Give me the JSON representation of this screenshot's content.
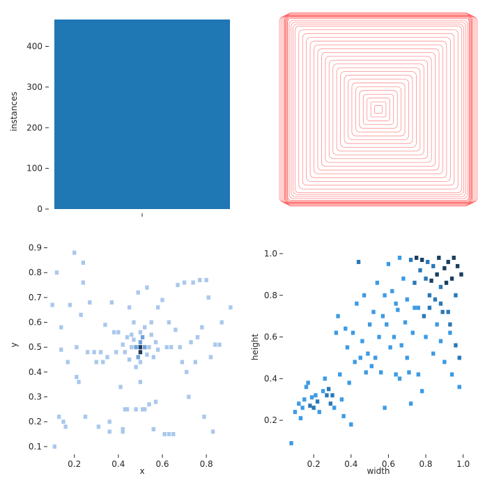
{
  "chart_data": [
    {
      "type": "bar",
      "categories": [
        ""
      ],
      "values": [
        466
      ],
      "title": "",
      "xlabel": "",
      "ylabel": "instances",
      "ylim": [
        0,
        466
      ],
      "yticks": [
        0,
        100,
        200,
        300,
        400
      ],
      "grid": false,
      "colors": {
        "bar": "#1f77b4"
      }
    },
    {
      "type": "other",
      "description_free": true,
      "title": "",
      "xlabel": "",
      "ylabel": "",
      "colors": {
        "stroke": "#ff0000"
      },
      "box_half_sizes": [
        0.02,
        0.04,
        0.06,
        0.08,
        0.1,
        0.12,
        0.14,
        0.16,
        0.18,
        0.2,
        0.22,
        0.24,
        0.26,
        0.28,
        0.3,
        0.32,
        0.34,
        0.36,
        0.38,
        0.4,
        0.42,
        0.44,
        0.45,
        0.46,
        0.47,
        0.48,
        0.485,
        0.49,
        0.495,
        0.5
      ]
    },
    {
      "type": "heatmap",
      "title": "",
      "xlabel": "x",
      "ylabel": "y",
      "xlim": [
        0.09,
        0.92
      ],
      "ylim": [
        0.08,
        0.91
      ],
      "xticks": [
        "0.2",
        "0.4",
        "0.6",
        "0.8"
      ],
      "xtick_values": [
        0.2,
        0.4,
        0.6,
        0.8
      ],
      "yticks": [
        "0.1",
        "0.2",
        "0.3",
        "0.4",
        "0.5",
        "0.6",
        "0.7",
        "0.8",
        "0.9"
      ],
      "ytick_values": [
        0.1,
        0.2,
        0.3,
        0.4,
        0.5,
        0.6,
        0.7,
        0.8,
        0.9
      ],
      "bin_width": 0.017,
      "colors": {
        "low": "#aac8ec",
        "mid": "#6fa3da",
        "high": "#203a5a"
      },
      "cells": [
        [
          0.5,
          0.5,
          3
        ],
        [
          0.5,
          0.48,
          3
        ],
        [
          0.5,
          0.52,
          2
        ],
        [
          0.48,
          0.5,
          2
        ],
        [
          0.52,
          0.5,
          2
        ],
        [
          0.49,
          0.46,
          2
        ],
        [
          0.51,
          0.54,
          2
        ],
        [
          0.46,
          0.5,
          1
        ],
        [
          0.54,
          0.5,
          1
        ],
        [
          0.5,
          0.44,
          1
        ],
        [
          0.5,
          0.56,
          1
        ],
        [
          0.47,
          0.53,
          1
        ],
        [
          0.53,
          0.47,
          1
        ],
        [
          0.55,
          0.55,
          1
        ],
        [
          0.45,
          0.45,
          1
        ],
        [
          0.52,
          0.58,
          1
        ],
        [
          0.48,
          0.42,
          1
        ],
        [
          0.57,
          0.52,
          1
        ],
        [
          0.43,
          0.48,
          1
        ],
        [
          0.56,
          0.46,
          1
        ],
        [
          0.44,
          0.54,
          1
        ],
        [
          0.58,
          0.49,
          1
        ],
        [
          0.42,
          0.51,
          1
        ],
        [
          0.1,
          0.67,
          1
        ],
        [
          0.11,
          0.1,
          1
        ],
        [
          0.12,
          0.8,
          1
        ],
        [
          0.13,
          0.22,
          1
        ],
        [
          0.14,
          0.58,
          1
        ],
        [
          0.15,
          0.2,
          1
        ],
        [
          0.14,
          0.49,
          1
        ],
        [
          0.16,
          0.18,
          1
        ],
        [
          0.17,
          0.44,
          1
        ],
        [
          0.18,
          0.67,
          1
        ],
        [
          0.2,
          0.88,
          1
        ],
        [
          0.21,
          0.38,
          1
        ],
        [
          0.21,
          0.5,
          1
        ],
        [
          0.22,
          0.36,
          1
        ],
        [
          0.23,
          0.63,
          1
        ],
        [
          0.24,
          0.84,
          1
        ],
        [
          0.24,
          0.76,
          1
        ],
        [
          0.25,
          0.22,
          1
        ],
        [
          0.26,
          0.48,
          1
        ],
        [
          0.27,
          0.68,
          1
        ],
        [
          0.29,
          0.48,
          1
        ],
        [
          0.3,
          0.44,
          1
        ],
        [
          0.31,
          0.18,
          1
        ],
        [
          0.32,
          0.48,
          1
        ],
        [
          0.33,
          0.44,
          1
        ],
        [
          0.34,
          0.59,
          1
        ],
        [
          0.35,
          0.46,
          1
        ],
        [
          0.36,
          0.2,
          1
        ],
        [
          0.37,
          0.68,
          1
        ],
        [
          0.38,
          0.56,
          1
        ],
        [
          0.39,
          0.48,
          1
        ],
        [
          0.4,
          0.56,
          1
        ],
        [
          0.41,
          0.34,
          1
        ],
        [
          0.42,
          0.16,
          1
        ],
        [
          0.43,
          0.25,
          1
        ],
        [
          0.44,
          0.25,
          1
        ],
        [
          0.45,
          0.66,
          1
        ],
        [
          0.46,
          0.55,
          1
        ],
        [
          0.47,
          0.6,
          1
        ],
        [
          0.48,
          0.25,
          1
        ],
        [
          0.49,
          0.72,
          1
        ],
        [
          0.5,
          0.36,
          1
        ],
        [
          0.51,
          0.25,
          1
        ],
        [
          0.52,
          0.25,
          1
        ],
        [
          0.53,
          0.74,
          1
        ],
        [
          0.54,
          0.27,
          1
        ],
        [
          0.55,
          0.6,
          1
        ],
        [
          0.56,
          0.17,
          1
        ],
        [
          0.57,
          0.28,
          1
        ],
        [
          0.58,
          0.66,
          1
        ],
        [
          0.6,
          0.69,
          1
        ],
        [
          0.61,
          0.15,
          1
        ],
        [
          0.62,
          0.5,
          1
        ],
        [
          0.63,
          0.6,
          1
        ],
        [
          0.64,
          0.5,
          1
        ],
        [
          0.65,
          0.15,
          1
        ],
        [
          0.66,
          0.57,
          1
        ],
        [
          0.67,
          0.75,
          1
        ],
        [
          0.68,
          0.5,
          1
        ],
        [
          0.69,
          0.44,
          1
        ],
        [
          0.7,
          0.76,
          1
        ],
        [
          0.71,
          0.4,
          1
        ],
        [
          0.72,
          0.3,
          1
        ],
        [
          0.73,
          0.52,
          1
        ],
        [
          0.74,
          0.76,
          1
        ],
        [
          0.75,
          0.44,
          1
        ],
        [
          0.76,
          0.54,
          1
        ],
        [
          0.77,
          0.77,
          1
        ],
        [
          0.78,
          0.58,
          1
        ],
        [
          0.79,
          0.22,
          1
        ],
        [
          0.8,
          0.77,
          1
        ],
        [
          0.81,
          0.7,
          1
        ],
        [
          0.82,
          0.46,
          1
        ],
        [
          0.83,
          0.16,
          1
        ],
        [
          0.84,
          0.51,
          1
        ],
        [
          0.86,
          0.51,
          1
        ],
        [
          0.87,
          0.6,
          1
        ],
        [
          0.91,
          0.66,
          1
        ],
        [
          0.63,
          0.15,
          1
        ],
        [
          0.56,
          0.17,
          1
        ],
        [
          0.42,
          0.17,
          1
        ],
        [
          0.36,
          0.16,
          1
        ]
      ]
    },
    {
      "type": "heatmap",
      "title": "",
      "xlabel": "width",
      "ylabel": "height",
      "xlim": [
        0.05,
        1.02
      ],
      "ylim": [
        0.05,
        1.04
      ],
      "xticks": [
        "0.2",
        "0.4",
        "0.6",
        "0.8",
        "1.0"
      ],
      "xtick_values": [
        0.2,
        0.4,
        0.6,
        0.8,
        1.0
      ],
      "yticks": [
        "0.2",
        "0.4",
        "0.6",
        "0.8",
        "1.0"
      ],
      "ytick_values": [
        0.2,
        0.4,
        0.6,
        0.8,
        1.0
      ],
      "bin_width": 0.02,
      "colors": {
        "low": "#3c9be5",
        "mid": "#2b78b6",
        "high": "#1b3f5e"
      },
      "cells": [
        [
          0.08,
          0.09,
          1
        ],
        [
          0.1,
          0.24,
          1
        ],
        [
          0.12,
          0.28,
          1
        ],
        [
          0.13,
          0.21,
          1
        ],
        [
          0.14,
          0.26,
          1
        ],
        [
          0.15,
          0.3,
          1
        ],
        [
          0.16,
          0.36,
          1
        ],
        [
          0.17,
          0.38,
          1
        ],
        [
          0.18,
          0.27,
          2
        ],
        [
          0.19,
          0.31,
          1
        ],
        [
          0.2,
          0.26,
          2
        ],
        [
          0.21,
          0.32,
          1
        ],
        [
          0.22,
          0.29,
          2
        ],
        [
          0.23,
          0.24,
          1
        ],
        [
          0.25,
          0.34,
          1
        ],
        [
          0.26,
          0.4,
          1
        ],
        [
          0.27,
          0.32,
          2
        ],
        [
          0.28,
          0.35,
          2
        ],
        [
          0.29,
          0.28,
          2
        ],
        [
          0.3,
          0.32,
          2
        ],
        [
          0.31,
          0.26,
          1
        ],
        [
          0.32,
          0.62,
          1
        ],
        [
          0.33,
          0.7,
          1
        ],
        [
          0.34,
          0.42,
          1
        ],
        [
          0.35,
          0.3,
          1
        ],
        [
          0.36,
          0.22,
          1
        ],
        [
          0.37,
          0.64,
          1
        ],
        [
          0.38,
          0.55,
          1
        ],
        [
          0.39,
          0.38,
          1
        ],
        [
          0.4,
          0.18,
          1
        ],
        [
          0.41,
          0.62,
          1
        ],
        [
          0.42,
          0.48,
          1
        ],
        [
          0.43,
          0.76,
          1
        ],
        [
          0.44,
          0.96,
          2
        ],
        [
          0.45,
          0.5,
          1
        ],
        [
          0.46,
          0.58,
          1
        ],
        [
          0.47,
          0.8,
          1
        ],
        [
          0.48,
          0.43,
          1
        ],
        [
          0.49,
          0.52,
          1
        ],
        [
          0.5,
          0.66,
          1
        ],
        [
          0.51,
          0.46,
          1
        ],
        [
          0.52,
          0.72,
          1
        ],
        [
          0.53,
          0.5,
          1
        ],
        [
          0.54,
          0.86,
          1
        ],
        [
          0.55,
          0.6,
          1
        ],
        [
          0.56,
          0.43,
          1
        ],
        [
          0.57,
          0.7,
          1
        ],
        [
          0.58,
          0.26,
          1
        ],
        [
          0.59,
          0.66,
          1
        ],
        [
          0.6,
          0.95,
          1
        ],
        [
          0.61,
          0.55,
          1
        ],
        [
          0.62,
          0.82,
          1
        ],
        [
          0.63,
          0.6,
          1
        ],
        [
          0.64,
          0.42,
          1
        ],
        [
          0.65,
          0.73,
          1
        ],
        [
          0.66,
          0.98,
          1
        ],
        [
          0.67,
          0.56,
          1
        ],
        [
          0.68,
          0.88,
          1
        ],
        [
          0.69,
          0.67,
          1
        ],
        [
          0.7,
          0.78,
          1
        ],
        [
          0.71,
          0.43,
          1
        ],
        [
          0.72,
          0.97,
          2
        ],
        [
          0.73,
          0.62,
          1
        ],
        [
          0.74,
          0.86,
          2
        ],
        [
          0.75,
          0.98,
          3
        ],
        [
          0.76,
          0.74,
          1
        ],
        [
          0.77,
          0.92,
          2
        ],
        [
          0.78,
          0.97,
          3
        ],
        [
          0.79,
          0.7,
          2
        ],
        [
          0.8,
          0.88,
          2
        ],
        [
          0.81,
          0.96,
          2
        ],
        [
          0.82,
          0.8,
          2
        ],
        [
          0.83,
          0.87,
          3
        ],
        [
          0.84,
          0.94,
          2
        ],
        [
          0.85,
          0.78,
          2
        ],
        [
          0.86,
          0.9,
          3
        ],
        [
          0.87,
          0.98,
          3
        ],
        [
          0.88,
          0.84,
          2
        ],
        [
          0.89,
          0.72,
          2
        ],
        [
          0.9,
          0.93,
          3
        ],
        [
          0.91,
          0.86,
          3
        ],
        [
          0.92,
          0.96,
          3
        ],
        [
          0.93,
          0.66,
          2
        ],
        [
          0.94,
          0.88,
          3
        ],
        [
          0.95,
          0.98,
          3
        ],
        [
          0.96,
          0.8,
          2
        ],
        [
          0.97,
          0.94,
          3
        ],
        [
          0.98,
          0.5,
          2
        ],
        [
          0.99,
          0.9,
          3
        ],
        [
          0.84,
          0.52,
          1
        ],
        [
          0.9,
          0.48,
          1
        ],
        [
          0.96,
          0.56,
          2
        ],
        [
          0.93,
          0.62,
          1
        ],
        [
          0.88,
          0.58,
          1
        ],
        [
          0.8,
          0.6,
          1
        ],
        [
          0.86,
          0.66,
          1
        ],
        [
          0.76,
          0.42,
          1
        ],
        [
          0.7,
          0.5,
          1
        ],
        [
          0.66,
          0.4,
          1
        ],
        [
          0.94,
          0.42,
          1
        ],
        [
          0.98,
          0.36,
          1
        ],
        [
          0.78,
          0.34,
          1
        ],
        [
          0.72,
          0.28,
          1
        ],
        [
          0.82,
          0.74,
          2
        ],
        [
          0.88,
          0.76,
          2
        ],
        [
          0.92,
          0.72,
          2
        ],
        [
          0.74,
          0.74,
          1
        ],
        [
          0.64,
          0.76,
          1
        ],
        [
          0.58,
          0.8,
          1
        ]
      ]
    }
  ]
}
